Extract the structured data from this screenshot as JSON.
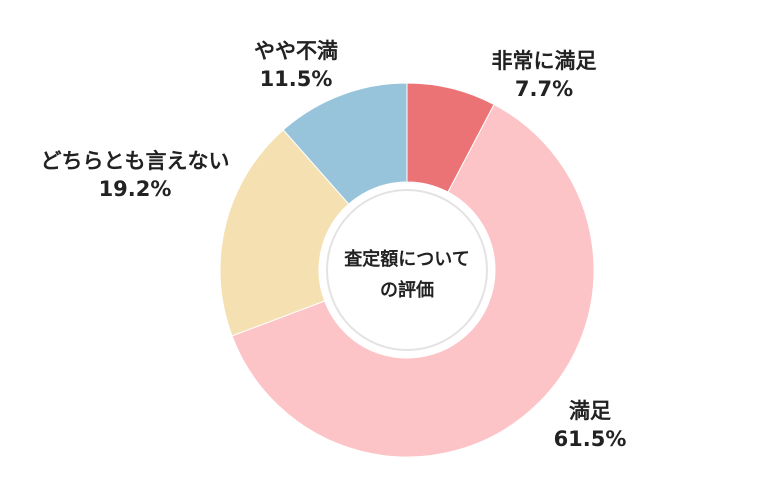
{
  "chart_data": {
    "type": "pie",
    "variant": "donut",
    "center_label": [
      "査定額について",
      "の評価"
    ],
    "categories": [
      "非常に満足",
      "満足",
      "どちらとも言えない",
      "やや不満"
    ],
    "values": [
      7.7,
      61.5,
      19.2,
      11.5
    ],
    "value_labels": [
      "7.7%",
      "61.5%",
      "19.2%",
      "11.5%"
    ],
    "colors": [
      "#eb7375",
      "#fcc4c6",
      "#f5e0b2",
      "#98c4db"
    ],
    "start": "12 o'clock",
    "direction": "clockwise",
    "legend": "none (labels placed outside slices)"
  }
}
